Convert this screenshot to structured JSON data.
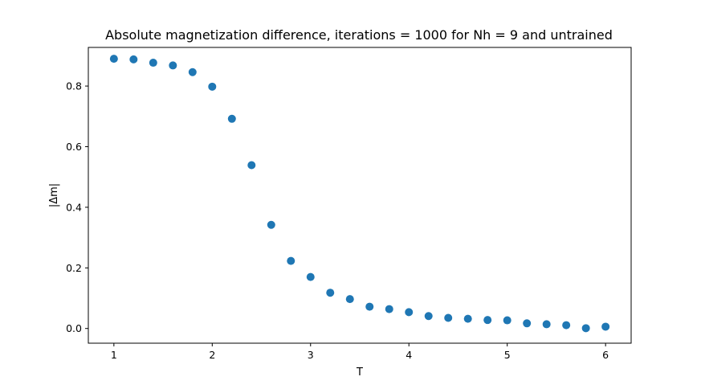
{
  "chart_data": {
    "type": "scatter",
    "title": "Absolute magnetization difference, iterations = 1000 for Nh = 9 and untrained",
    "xlabel": "T",
    "ylabel": "|Δm|",
    "xlim": [
      0.74,
      6.26
    ],
    "ylim": [
      -0.0485,
      0.9275
    ],
    "xticks": [
      1,
      2,
      3,
      4,
      5,
      6
    ],
    "xtick_labels": [
      "1",
      "2",
      "3",
      "4",
      "5",
      "6"
    ],
    "yticks": [
      0.0,
      0.2,
      0.4,
      0.6,
      0.8
    ],
    "ytick_labels": [
      "0.0",
      "0.2",
      "0.4",
      "0.6",
      "0.8"
    ],
    "grid": false,
    "legend": "none",
    "marker_color": "#1f77b4",
    "series": [
      {
        "x": [
          1.0,
          1.2,
          1.4,
          1.6,
          1.8,
          2.0,
          2.2,
          2.4,
          2.6,
          2.8,
          3.0,
          3.2,
          3.4,
          3.6,
          3.8,
          4.0,
          4.2,
          4.4,
          4.6,
          4.8,
          5.0,
          5.2,
          5.4,
          5.6,
          5.8,
          6.0
        ],
        "y": [
          0.89,
          0.888,
          0.877,
          0.868,
          0.846,
          0.798,
          0.692,
          0.539,
          0.342,
          0.223,
          0.17,
          0.118,
          0.097,
          0.072,
          0.064,
          0.054,
          0.041,
          0.035,
          0.032,
          0.028,
          0.027,
          0.017,
          0.014,
          0.011,
          0.001,
          0.006
        ]
      }
    ]
  }
}
